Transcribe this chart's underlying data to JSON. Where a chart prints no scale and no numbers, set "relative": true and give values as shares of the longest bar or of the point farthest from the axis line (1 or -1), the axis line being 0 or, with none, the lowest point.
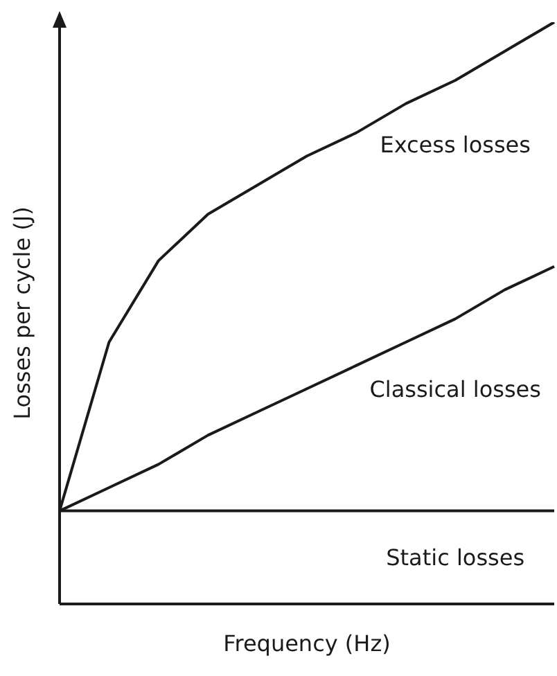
{
  "chart_data": {
    "type": "line",
    "relative": true,
    "xlabel": "Frequency (Hz)",
    "ylabel": "Losses per cycle (J)",
    "categories": [
      null,
      null,
      null,
      null,
      null,
      null,
      null,
      null,
      null,
      null,
      null
    ],
    "series": [
      {
        "color": "#1a1a1a",
        "values": [
          0.16,
          0.16,
          0.16,
          0.16,
          0.16,
          0.16,
          0.16,
          0.16,
          0.16,
          0.16,
          0.16
        ]
      },
      {
        "color": "#1a1a1a",
        "values": [
          0.16,
          0.2,
          0.24,
          0.29,
          0.33,
          0.37,
          0.41,
          0.45,
          0.49,
          0.54,
          0.58
        ]
      },
      {
        "color": "#1a1a1a",
        "values": [
          0.16,
          0.45,
          0.59,
          0.67,
          0.72,
          0.77,
          0.81,
          0.86,
          0.9,
          0.95,
          1
        ]
      }
    ],
    "annotations": [
      "Excess losses",
      "Classical losses",
      "Static losses"
    ]
  }
}
